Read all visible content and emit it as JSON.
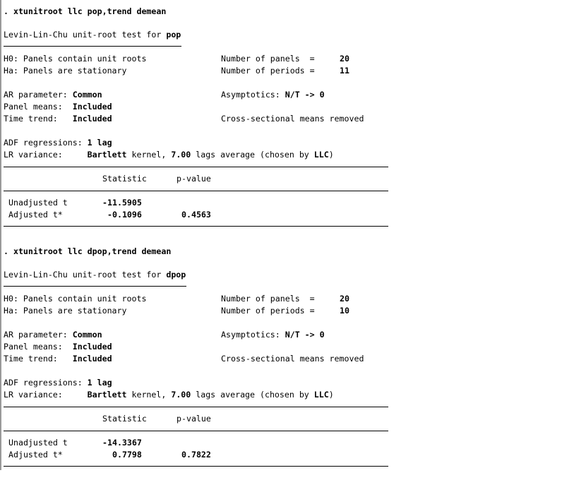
{
  "blocks": [
    {
      "command": ". xtunitroot llc pop,trend demean",
      "title_prefix": "Levin-Lin-Chu unit-root test for ",
      "variable": "pop",
      "h0": "H0: Panels contain unit roots",
      "ha": "Ha: Panels are stationary",
      "panels_label": "Number of panels  =",
      "panels_value": "20",
      "periods_label": "Number of periods =",
      "periods_value": "11",
      "ar_label": "AR parameter: ",
      "ar_value": "Common",
      "asym_label": "Asymptotics: ",
      "asym_value": "N/T -> 0",
      "means_label": "Panel means:  ",
      "means_value": "Included",
      "trend_label": "Time trend:   ",
      "trend_value": "Included",
      "cross_sectional": "Cross-sectional means removed",
      "adf_label": "ADF regressions: ",
      "adf_value": "1 lag",
      "lr_label": "LR variance:     ",
      "lr_kernel": "Bartlett",
      "lr_text1": " kernel, ",
      "lr_lags": "7.00",
      "lr_text2": " lags average (chosen by ",
      "lr_method": "LLC",
      "lr_text3": ")",
      "table": {
        "headers": [
          "Statistic",
          "p-value"
        ],
        "rows": [
          {
            "label": "Unadjusted t",
            "statistic": "-11.5905",
            "pvalue": ""
          },
          {
            "label": "Adjusted t*",
            "statistic": "-0.1096",
            "pvalue": "0.4563"
          }
        ]
      }
    },
    {
      "command": ". xtunitroot llc dpop,trend demean",
      "title_prefix": "Levin-Lin-Chu unit-root test for ",
      "variable": "dpop",
      "h0": "H0: Panels contain unit roots",
      "ha": "Ha: Panels are stationary",
      "panels_label": "Number of panels  =",
      "panels_value": "20",
      "periods_label": "Number of periods =",
      "periods_value": "10",
      "ar_label": "AR parameter: ",
      "ar_value": "Common",
      "asym_label": "Asymptotics: ",
      "asym_value": "N/T -> 0",
      "means_label": "Panel means:  ",
      "means_value": "Included",
      "trend_label": "Time trend:   ",
      "trend_value": "Included",
      "cross_sectional": "Cross-sectional means removed",
      "adf_label": "ADF regressions: ",
      "adf_value": "1 lag",
      "lr_label": "LR variance:     ",
      "lr_kernel": "Bartlett",
      "lr_text1": " kernel, ",
      "lr_lags": "7.00",
      "lr_text2": " lags average (chosen by ",
      "lr_method": "LLC",
      "lr_text3": ")",
      "table": {
        "headers": [
          "Statistic",
          "p-value"
        ],
        "rows": [
          {
            "label": "Unadjusted t",
            "statistic": "-14.3367",
            "pvalue": ""
          },
          {
            "label": "Adjusted t*",
            "statistic": "0.7798",
            "pvalue": "0.7822"
          }
        ]
      }
    }
  ]
}
